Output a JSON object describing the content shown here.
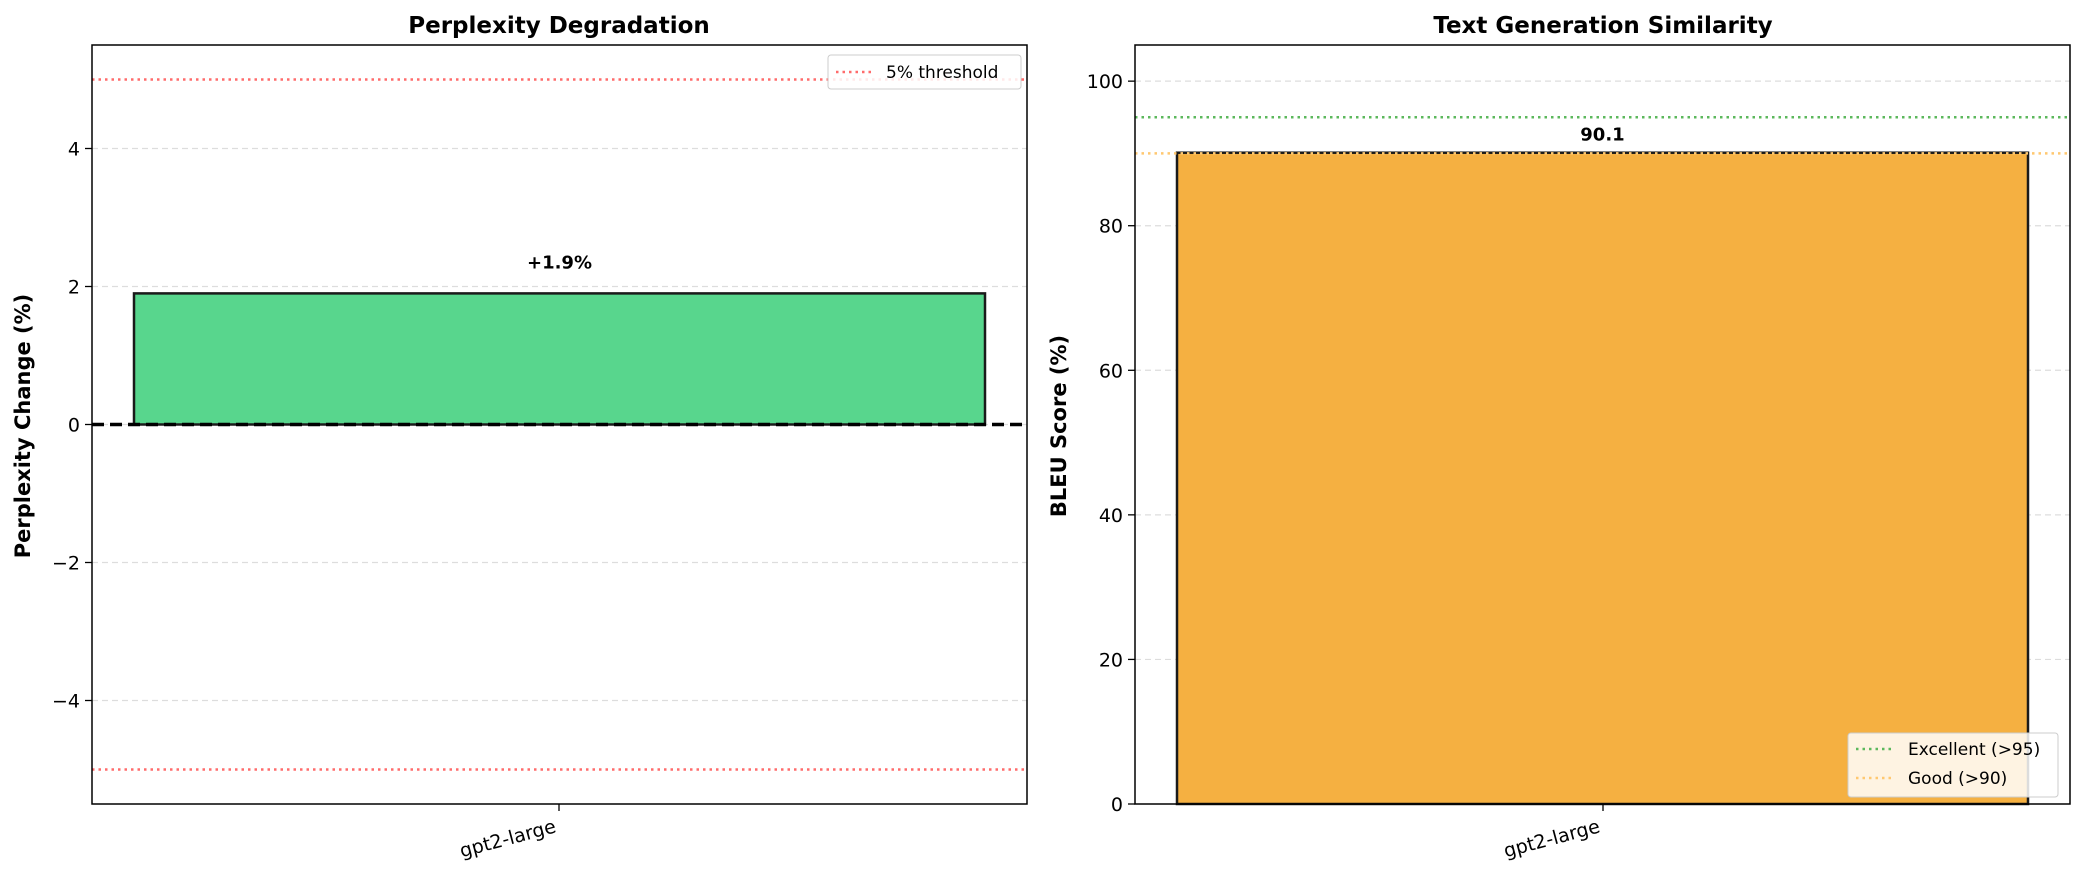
{
  "chart_data": [
    {
      "type": "bar",
      "title": "Perplexity Degradation",
      "xlabel": "",
      "ylabel": "Perplexity Change (%)",
      "categories": [
        "gpt2-large"
      ],
      "values": [
        1.9
      ],
      "data_labels": [
        "+1.9%"
      ],
      "ylim": [
        -5.5,
        5.5
      ],
      "yticks": [
        -4,
        -2,
        0,
        2,
        4
      ],
      "ytick_labels": [
        "−4",
        "−2",
        "0",
        "2",
        "4"
      ],
      "grid": "y dashed",
      "bar_color": "#58d68d",
      "reference_lines": [
        {
          "y": 5,
          "color": "#ff6b6b",
          "style": "dotted",
          "legend": "5% threshold"
        },
        {
          "y": -5,
          "color": "#ff6b6b",
          "style": "dotted",
          "legend": ""
        },
        {
          "y": 0,
          "color": "#000000",
          "style": "dashed",
          "legend": ""
        }
      ],
      "legend": {
        "placement": "top-right",
        "entries": [
          "5% threshold"
        ]
      }
    },
    {
      "type": "bar",
      "title": "Text Generation Similarity",
      "xlabel": "",
      "ylabel": "BLEU Score (%)",
      "categories": [
        "gpt2-large"
      ],
      "values": [
        90.1
      ],
      "data_labels": [
        "90.1"
      ],
      "ylim": [
        0,
        105
      ],
      "yticks": [
        0,
        20,
        40,
        60,
        80,
        100
      ],
      "ytick_labels": [
        "0",
        "20",
        "40",
        "60",
        "80",
        "100"
      ],
      "grid": "y dashed",
      "bar_color": "#f5b041",
      "reference_lines": [
        {
          "y": 95,
          "color": "#5cb85c",
          "style": "dotted",
          "legend": "Excellent (>95)"
        },
        {
          "y": 90,
          "color": "#ffc870",
          "style": "dotted",
          "legend": "Good (>90)"
        }
      ],
      "legend": {
        "placement": "bottom-right",
        "entries": [
          "Excellent (>95)",
          "Good (>90)"
        ]
      }
    }
  ]
}
